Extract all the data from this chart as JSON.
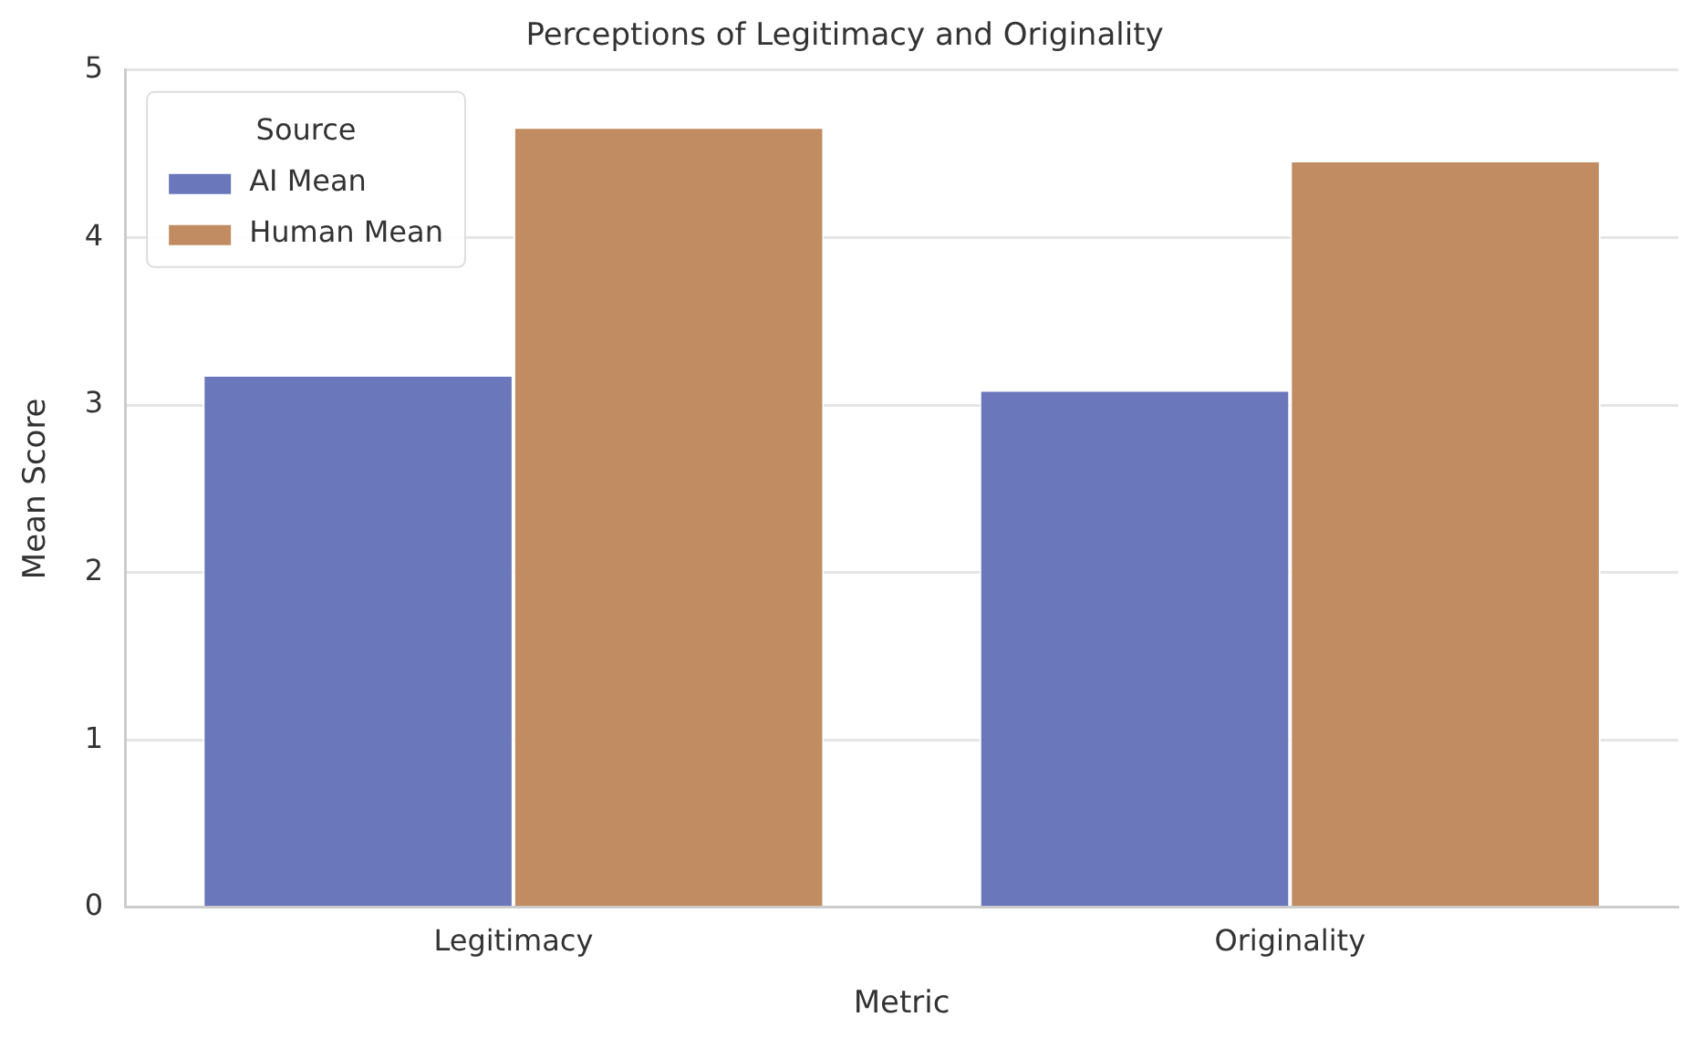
{
  "chart_data": {
    "type": "bar",
    "title": "Perceptions of Legitimacy and Originality",
    "xlabel": "Metric",
    "ylabel": "Mean Score",
    "legend_title": "Source",
    "categories": [
      "Legitimacy",
      "Originality"
    ],
    "series": [
      {
        "name": "AI Mean",
        "color": "#6a77bb",
        "values": [
          3.18,
          3.09
        ]
      },
      {
        "name": "Human Mean",
        "color": "#c28c63",
        "values": [
          4.66,
          4.46
        ]
      }
    ],
    "ylim": [
      0,
      5
    ],
    "yticks": [
      0,
      1,
      2,
      3,
      4,
      5
    ],
    "grid": "y",
    "legend": "top left"
  }
}
